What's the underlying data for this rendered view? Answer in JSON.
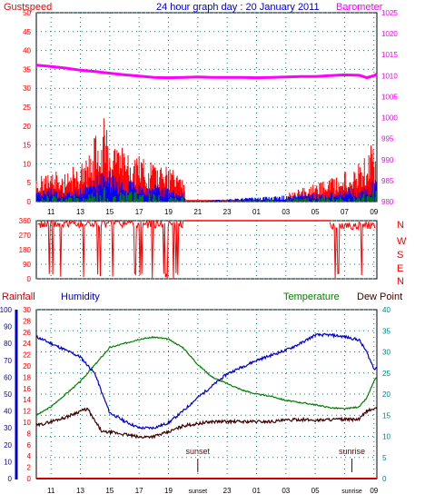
{
  "header": {
    "gust_label": "Gustspeed",
    "title": "24 hour graph day : 20 January 2011",
    "baro_label": "Barometer",
    "rain_label": "Rainfall",
    "hum_label": "Humidity",
    "temp_label": "Temperature",
    "dew_label": "Dew Point",
    "sunset_label": "sunset",
    "sunrise_label": "sunrise"
  },
  "colors": {
    "gust": "#ff0000",
    "wind": "#0000ff",
    "calm": "#008000",
    "baro": "#ff00ff",
    "dir": "#ff0000",
    "humidity": "#0000cc",
    "temperature": "#008000",
    "dewpoint": "#400000",
    "rain": "#cc0000",
    "grid": "#008080",
    "teal_axis": "#008080",
    "blue_axis": "#0000cc",
    "red_axis": "#ff0000",
    "baro_axis": "#ff00ff"
  },
  "chart_data": [
    {
      "type": "bar",
      "id": "wind",
      "ylim": [
        0,
        50
      ],
      "ylim_right": [
        980,
        1025
      ],
      "y_ticks": [
        0,
        5,
        10,
        15,
        20,
        25,
        30,
        35,
        40,
        45,
        50
      ],
      "y_ticks_right": [
        980,
        985,
        990,
        995,
        1000,
        1005,
        1010,
        1015,
        1020,
        1025
      ],
      "x_hours": [
        10,
        33.2
      ],
      "x_tick_labels": [
        "11",
        "13",
        "15",
        "17",
        "19",
        "21",
        "23",
        "01",
        "03",
        "05",
        "07",
        "09"
      ],
      "x_tick_hours": [
        11,
        13,
        15,
        17,
        19,
        21,
        23,
        25,
        27,
        29,
        31,
        33
      ],
      "gust_envelope": {
        "hours": [
          10.0,
          10.5,
          11.0,
          11.5,
          12.0,
          12.5,
          13.0,
          13.5,
          14.0,
          14.5,
          15.0,
          15.5,
          16.0,
          16.5,
          17.0,
          17.5,
          18.0,
          18.5,
          19.0,
          19.5,
          20.0,
          20.2,
          27.0,
          27.2,
          30.0,
          30.5,
          31.0,
          31.5,
          32.0,
          32.5,
          33.0,
          33.2
        ],
        "values": [
          5,
          7,
          6,
          7,
          6,
          8,
          9,
          10,
          16,
          20,
          15,
          14,
          12,
          10,
          11,
          9,
          10,
          9,
          8,
          7,
          5,
          0,
          0,
          2,
          5,
          6,
          7,
          6,
          9,
          10,
          14,
          12
        ]
      },
      "wind_envelope": {
        "hours": [
          10.0,
          11.0,
          12.0,
          13.0,
          14.0,
          15.0,
          16.0,
          17.0,
          18.0,
          19.0,
          20.0,
          20.2,
          30.0,
          31.0,
          32.0,
          33.0,
          33.2
        ],
        "values": [
          2,
          3,
          2,
          3,
          6,
          7,
          5,
          4,
          4,
          3,
          2,
          0,
          2,
          3,
          3,
          5,
          6
        ]
      },
      "barometer": {
        "hours": [
          10,
          11,
          12,
          13,
          14,
          15,
          16,
          17,
          18,
          19,
          20,
          21,
          22,
          23,
          24,
          25,
          26,
          27,
          28,
          29,
          30,
          31,
          32,
          32.5,
          33,
          33.2
        ],
        "values": [
          1012.5,
          1012.2,
          1011.8,
          1011.3,
          1011.0,
          1010.6,
          1010.2,
          1009.9,
          1009.6,
          1009.5,
          1009.6,
          1009.7,
          1009.6,
          1009.6,
          1009.6,
          1009.5,
          1009.6,
          1009.7,
          1009.8,
          1009.8,
          1010.0,
          1010.2,
          1010.1,
          1009.5,
          1010.0,
          1010.4
        ]
      }
    },
    {
      "type": "line",
      "id": "direction",
      "y_ticks": [
        0,
        90,
        180,
        270,
        360
      ],
      "y_labels_right": [
        "N",
        "W",
        "S",
        "E",
        "N"
      ],
      "segments": [
        {
          "hours": [
            10.1,
            20.1
          ],
          "values_mean": 340
        },
        {
          "hours": [
            30.0,
            33.1
          ],
          "values_mean": 330
        }
      ],
      "calm_value": 360,
      "calm_hours": [
        20.1,
        30.0
      ]
    },
    {
      "type": "line",
      "id": "weather",
      "y_ticks_humidity": [
        0,
        10,
        20,
        30,
        40,
        50,
        60,
        70,
        80,
        90,
        100
      ],
      "y_ticks_rain": [
        0,
        2,
        4,
        6,
        8,
        10,
        12,
        14,
        16,
        18,
        20,
        22,
        24,
        26,
        28,
        30
      ],
      "y_ticks_temp": [
        0,
        5,
        10,
        15,
        20,
        25,
        30,
        35,
        40
      ],
      "x_tick_labels": [
        "11",
        "13",
        "15",
        "17",
        "19",
        "sunset",
        "23",
        "01",
        "03",
        "05",
        "sunrise",
        "09"
      ],
      "sunset_hour": 21.0,
      "sunrise_hour": 31.5,
      "series": [
        {
          "name": "Humidity",
          "hours": [
            10,
            11,
            12,
            13,
            14,
            14.5,
            15,
            16,
            17,
            18,
            19,
            20,
            21,
            22,
            23,
            24,
            25,
            26,
            27,
            28,
            29,
            30,
            31,
            32,
            32.5,
            33,
            33.2
          ],
          "values": [
            84,
            80,
            76,
            72,
            62,
            50,
            39,
            34,
            30,
            30,
            33,
            40,
            48,
            55,
            62,
            66,
            70,
            73,
            76,
            80,
            85,
            85,
            84,
            82,
            75,
            65,
            66
          ]
        },
        {
          "name": "Temperature",
          "hours": [
            10,
            11,
            12,
            13,
            14,
            15,
            16,
            17,
            18,
            19,
            20,
            21,
            22,
            23,
            24,
            25,
            26,
            27,
            28,
            29,
            30,
            31,
            32,
            32.5,
            33,
            33.2
          ],
          "values": [
            15,
            17,
            20,
            23,
            27,
            31,
            32,
            33,
            33.5,
            33,
            31,
            27,
            24,
            22.5,
            21,
            20,
            19.5,
            18.5,
            18,
            17.5,
            16.8,
            16.5,
            17,
            19,
            23,
            24
          ]
        },
        {
          "name": "Dew Point",
          "hours": [
            10,
            11,
            12,
            13,
            13.5,
            14,
            14.5,
            15,
            16,
            17,
            18,
            19,
            20,
            21,
            22,
            23,
            24,
            25,
            26,
            27,
            28,
            29,
            30,
            31,
            32,
            32.5,
            33,
            33.2
          ],
          "values": [
            12.5,
            13.5,
            14.5,
            16,
            16.5,
            13.5,
            11,
            11,
            10.5,
            9.8,
            10,
            11,
            12.5,
            13,
            13.5,
            13.5,
            13.5,
            13.5,
            13.5,
            13.8,
            14,
            13.8,
            14,
            14,
            14,
            16,
            16.5,
            16.5
          ]
        },
        {
          "name": "Rainfall",
          "hours": [
            10,
            33.2
          ],
          "values": [
            0,
            0
          ]
        }
      ]
    }
  ]
}
